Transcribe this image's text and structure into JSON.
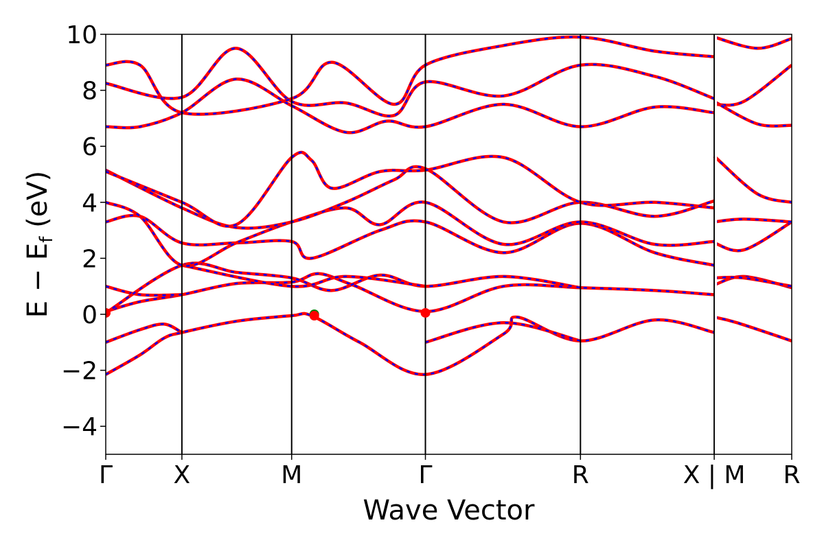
{
  "chart_data": {
    "type": "line",
    "title": "",
    "xlabel": "Wave Vector",
    "ylabel": "E − E",
    "ylabel_sub": "f",
    "ylabel_unit": " (eV)",
    "ylim": [
      -5,
      10
    ],
    "yticks": [
      -4,
      -2,
      0,
      2,
      4,
      6,
      8,
      10
    ],
    "ytick_labels": [
      "−4",
      "−2",
      "0",
      "2",
      "4",
      "6",
      "8",
      "10"
    ],
    "grid": false,
    "legend": "none",
    "x_range": [
      0,
      1
    ],
    "kpoint_ticks": [
      {
        "pos": 0.0,
        "label": "Γ"
      },
      {
        "pos": 0.111,
        "label": "X"
      },
      {
        "pos": 0.271,
        "label": "M"
      },
      {
        "pos": 0.466,
        "label": "Γ"
      },
      {
        "pos": 0.692,
        "label": "R"
      },
      {
        "pos": 0.887,
        "label": "X | M"
      },
      {
        "pos": 1.0,
        "label": "R"
      }
    ],
    "segment_breaks": [
      0.887
    ],
    "series_style": {
      "dft_color": "#ff0000",
      "interp_color": "#0000ff",
      "marker_vbm": "#008000",
      "marker_cbm": "#ff0000"
    },
    "bands": [
      [
        [
          0.0,
          -2.15
        ],
        [
          0.05,
          -1.45
        ],
        [
          0.085,
          -0.85
        ],
        [
          0.111,
          -0.65
        ],
        [
          0.19,
          -0.25
        ],
        [
          0.271,
          -0.05
        ],
        [
          0.3,
          -0.05
        ],
        [
          0.37,
          -1.0
        ],
        [
          0.466,
          -2.15
        ],
        [
          0.58,
          -0.7
        ],
        [
          0.6,
          -0.1
        ],
        [
          0.692,
          -0.95
        ],
        [
          0.8,
          -0.2
        ],
        [
          0.887,
          -0.65
        ]
      ],
      [
        [
          0.0,
          -1.0
        ],
        [
          0.05,
          -0.55
        ],
        [
          0.085,
          -0.35
        ],
        [
          0.111,
          -0.65
        ]
      ],
      [
        [
          0.466,
          -1.0
        ],
        [
          0.58,
          -0.3
        ],
        [
          0.692,
          -0.95
        ]
      ],
      [
        [
          0.0,
          0.1
        ],
        [
          0.05,
          0.45
        ],
        [
          0.111,
          0.7
        ],
        [
          0.19,
          1.1
        ],
        [
          0.271,
          1.15
        ],
        [
          0.31,
          1.45
        ],
        [
          0.36,
          1.05
        ],
        [
          0.466,
          0.1
        ],
        [
          0.58,
          1.0
        ],
        [
          0.692,
          0.95
        ],
        [
          0.8,
          0.85
        ],
        [
          0.887,
          0.7
        ]
      ],
      [
        [
          0.0,
          1.0
        ],
        [
          0.05,
          0.7
        ],
        [
          0.111,
          0.7
        ]
      ],
      [
        [
          0.0,
          0.05
        ],
        [
          0.111,
          1.75
        ],
        [
          0.19,
          1.5
        ],
        [
          0.271,
          1.3
        ],
        [
          0.33,
          0.85
        ],
        [
          0.4,
          1.4
        ],
        [
          0.466,
          1.0
        ],
        [
          0.58,
          1.35
        ],
        [
          0.692,
          0.95
        ]
      ],
      [
        [
          0.111,
          1.75
        ],
        [
          0.271,
          1.0
        ],
        [
          0.35,
          1.35
        ],
        [
          0.466,
          1.0
        ]
      ],
      [
        [
          0.0,
          3.3
        ],
        [
          0.05,
          3.5
        ],
        [
          0.111,
          2.55
        ],
        [
          0.19,
          2.55
        ],
        [
          0.271,
          2.6
        ],
        [
          0.3,
          2.0
        ],
        [
          0.4,
          3.0
        ],
        [
          0.466,
          3.3
        ],
        [
          0.58,
          2.2
        ],
        [
          0.692,
          3.25
        ],
        [
          0.8,
          2.2
        ],
        [
          0.887,
          1.75
        ]
      ],
      [
        [
          0.0,
          4.0
        ],
        [
          0.05,
          3.5
        ],
        [
          0.111,
          1.75
        ],
        [
          0.19,
          2.55
        ],
        [
          0.271,
          3.3
        ],
        [
          0.35,
          3.8
        ],
        [
          0.4,
          3.2
        ],
        [
          0.466,
          4.0
        ],
        [
          0.58,
          2.5
        ],
        [
          0.692,
          3.3
        ],
        [
          0.8,
          2.5
        ],
        [
          0.887,
          2.6
        ]
      ],
      [
        [
          0.0,
          5.15
        ],
        [
          0.111,
          3.8
        ],
        [
          0.19,
          3.1
        ],
        [
          0.271,
          3.3
        ],
        [
          0.35,
          4.0
        ],
        [
          0.42,
          4.8
        ],
        [
          0.466,
          5.2
        ],
        [
          0.58,
          3.3
        ],
        [
          0.692,
          4.0
        ],
        [
          0.8,
          3.5
        ],
        [
          0.887,
          4.05
        ]
      ],
      [
        [
          0.0,
          5.1
        ],
        [
          0.111,
          4.0
        ],
        [
          0.19,
          3.2
        ],
        [
          0.271,
          5.6
        ],
        [
          0.3,
          5.5
        ],
        [
          0.33,
          4.5
        ],
        [
          0.4,
          5.1
        ],
        [
          0.466,
          5.15
        ],
        [
          0.58,
          5.6
        ],
        [
          0.692,
          4.0
        ],
        [
          0.8,
          4.0
        ],
        [
          0.887,
          3.8
        ]
      ],
      [
        [
          0.0,
          6.7
        ],
        [
          0.05,
          6.7
        ],
        [
          0.111,
          7.2
        ],
        [
          0.19,
          8.4
        ],
        [
          0.271,
          7.45
        ],
        [
          0.35,
          6.5
        ],
        [
          0.41,
          6.9
        ],
        [
          0.466,
          6.7
        ],
        [
          0.58,
          7.5
        ],
        [
          0.692,
          6.7
        ],
        [
          0.8,
          7.4
        ],
        [
          0.887,
          7.2
        ]
      ],
      [
        [
          0.0,
          8.25
        ],
        [
          0.111,
          7.75
        ],
        [
          0.19,
          9.5
        ],
        [
          0.271,
          7.6
        ],
        [
          0.35,
          7.55
        ],
        [
          0.42,
          7.1
        ],
        [
          0.466,
          8.3
        ],
        [
          0.58,
          7.8
        ],
        [
          0.692,
          8.9
        ],
        [
          0.8,
          8.5
        ],
        [
          0.887,
          7.7
        ]
      ],
      [
        [
          0.0,
          8.9
        ],
        [
          0.05,
          8.9
        ],
        [
          0.111,
          7.2
        ],
        [
          0.271,
          7.7
        ],
        [
          0.33,
          9.0
        ],
        [
          0.42,
          7.5
        ],
        [
          0.466,
          8.9
        ],
        [
          0.58,
          9.6
        ],
        [
          0.692,
          9.9
        ],
        [
          0.8,
          9.4
        ],
        [
          0.887,
          9.2
        ]
      ]
    ],
    "bands_right": [
      [
        [
          0.887,
          -0.1
        ],
        [
          0.92,
          -0.3
        ],
        [
          1.0,
          -0.95
        ]
      ],
      [
        [
          0.887,
          1.05
        ],
        [
          0.93,
          1.35
        ],
        [
          1.0,
          0.95
        ]
      ],
      [
        [
          0.887,
          1.3
        ],
        [
          0.93,
          1.3
        ],
        [
          1.0,
          1.0
        ]
      ],
      [
        [
          0.887,
          2.55
        ],
        [
          0.93,
          2.3
        ],
        [
          1.0,
          3.3
        ]
      ],
      [
        [
          0.887,
          3.3
        ],
        [
          0.93,
          3.4
        ],
        [
          1.0,
          3.3
        ]
      ],
      [
        [
          0.887,
          5.65
        ],
        [
          0.95,
          4.3
        ],
        [
          1.0,
          4.0
        ]
      ],
      [
        [
          0.887,
          7.5
        ],
        [
          0.93,
          7.6
        ],
        [
          1.0,
          8.9
        ]
      ],
      [
        [
          0.887,
          7.6
        ],
        [
          0.95,
          6.8
        ],
        [
          1.0,
          6.75
        ]
      ],
      [
        [
          0.887,
          9.9
        ],
        [
          0.95,
          9.5
        ],
        [
          1.0,
          9.85
        ]
      ]
    ],
    "markers": [
      {
        "x": 0.0,
        "y": 0.05,
        "color": "#ff0000"
      },
      {
        "x": 0.304,
        "y": 0.0,
        "color": "#008000"
      },
      {
        "x": 0.304,
        "y": -0.05,
        "color": "#ff0000"
      },
      {
        "x": 0.466,
        "y": 0.05,
        "color": "#ff0000"
      }
    ]
  }
}
